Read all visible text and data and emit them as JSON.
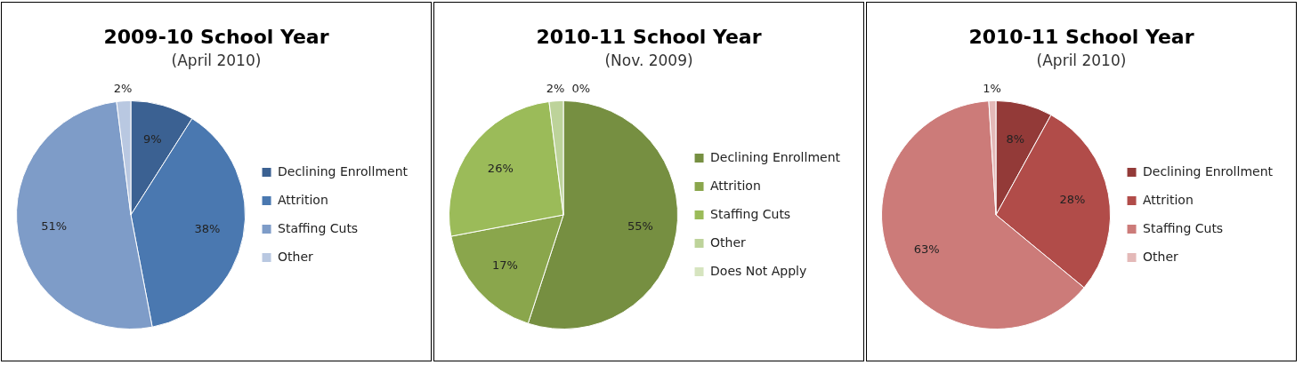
{
  "chart_data": [
    {
      "type": "pie",
      "title": "2009-10 School Year",
      "subtitle": "(April 2010)",
      "categories": [
        "Declining Enrollment",
        "Attrition",
        "Staffing Cuts",
        "Other"
      ],
      "values": [
        9,
        38,
        51,
        2
      ],
      "colors": [
        "#3b6192",
        "#4a78b0",
        "#7e9cc8",
        "#b9c8e1"
      ],
      "value_labels": [
        "9%",
        "38%",
        "51%",
        "2%"
      ],
      "legend": "right"
    },
    {
      "type": "pie",
      "title": "2010-11 School Year",
      "subtitle": "(Nov. 2009)",
      "categories": [
        "Declining Enrollment",
        "Attrition",
        "Staffing Cuts",
        "Other",
        "Does Not Apply"
      ],
      "values": [
        55,
        17,
        26,
        2,
        0
      ],
      "colors": [
        "#768f41",
        "#8aa64c",
        "#9bbb59",
        "#bdd39a",
        "#d6e4bf"
      ],
      "value_labels": [
        "55%",
        "17%",
        "26%",
        "2%",
        "0%"
      ],
      "legend": "right"
    },
    {
      "type": "pie",
      "title": "2010-11 School Year",
      "subtitle": "(April 2010)",
      "categories": [
        "Declining Enrollment",
        "Attrition",
        "Staffing Cuts",
        "Other"
      ],
      "values": [
        8,
        28,
        63,
        1
      ],
      "colors": [
        "#933a38",
        "#b14c49",
        "#cc7b79",
        "#e4b9b8"
      ],
      "value_labels": [
        "8%",
        "28%",
        "63%",
        "1%"
      ],
      "legend": "right"
    }
  ]
}
